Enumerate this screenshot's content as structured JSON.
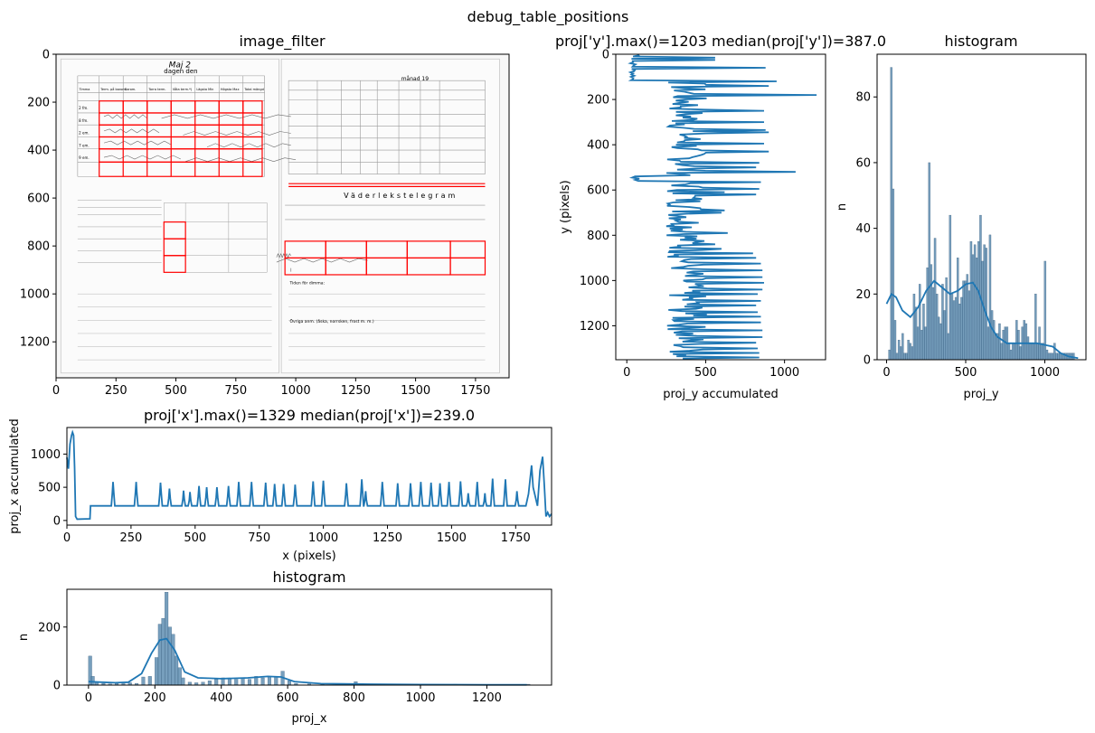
{
  "figure": {
    "suptitle": "debug_table_positions"
  },
  "colors": {
    "line": "#1f77b4",
    "hist_fill": "#4a7fa7",
    "hist_edge": "#35597a",
    "grid_box": "#ff0000"
  },
  "chart_data": [
    {
      "id": "image_filter",
      "type": "image",
      "title": "image_filter",
      "xlim": [
        0,
        1890
      ],
      "ylim": [
        1350,
        0
      ],
      "xticks": [
        0,
        250,
        500,
        750,
        1000,
        1250,
        1500,
        1750
      ],
      "yticks": [
        0,
        200,
        400,
        600,
        800,
        1000,
        1200
      ],
      "image_content": {
        "left_page": {
          "header": "dagen den",
          "date_handwritten": "Maj 2",
          "table_header": [
            "Timma",
            "Term. på barom.",
            "Barom.",
            "Torra term.",
            "Våta term.*)",
            "Lägsta Min",
            "Högsta Max",
            "Total mängd"
          ],
          "rows": [
            "2 fm.",
            "8 fm.",
            "2 em.",
            "7 em.",
            "9 em."
          ]
        },
        "right_page": {
          "header": "månad 19",
          "title": "Väderlekstelegram",
          "labels": [
            "Tiden för dimma:",
            "Övriga anm. (åska, norrsken, frost m. m.)"
          ]
        }
      },
      "boxes": [
        {
          "x0": 180,
          "x1": 280,
          "y0": 195,
          "y1": 245
        },
        {
          "x0": 280,
          "x1": 380,
          "y0": 195,
          "y1": 245
        },
        {
          "x0": 380,
          "x1": 480,
          "y0": 195,
          "y1": 245
        },
        {
          "x0": 480,
          "x1": 580,
          "y0": 195,
          "y1": 245
        },
        {
          "x0": 580,
          "x1": 680,
          "y0": 195,
          "y1": 245
        },
        {
          "x0": 680,
          "x1": 780,
          "y0": 195,
          "y1": 245
        },
        {
          "x0": 780,
          "x1": 860,
          "y0": 195,
          "y1": 245
        },
        {
          "x0": 180,
          "x1": 860,
          "y0": 245,
          "y1": 295
        },
        {
          "x0": 180,
          "x1": 860,
          "y0": 295,
          "y1": 345
        },
        {
          "x0": 180,
          "x1": 860,
          "y0": 345,
          "y1": 395
        },
        {
          "x0": 180,
          "x1": 860,
          "y0": 395,
          "y1": 450
        },
        {
          "x0": 180,
          "x1": 860,
          "y0": 450,
          "y1": 510
        },
        {
          "x0": 450,
          "x1": 540,
          "y0": 700,
          "y1": 770
        },
        {
          "x0": 450,
          "x1": 540,
          "y0": 770,
          "y1": 840
        },
        {
          "x0": 450,
          "x1": 540,
          "y0": 840,
          "y1": 910
        },
        {
          "x0": 955,
          "x1": 1125,
          "y0": 780,
          "y1": 850
        },
        {
          "x0": 1125,
          "x1": 1295,
          "y0": 780,
          "y1": 850
        },
        {
          "x0": 1295,
          "x1": 1465,
          "y0": 780,
          "y1": 850
        },
        {
          "x0": 1465,
          "x1": 1645,
          "y0": 780,
          "y1": 850
        },
        {
          "x0": 1645,
          "x1": 1790,
          "y0": 780,
          "y1": 850
        },
        {
          "x0": 955,
          "x1": 1125,
          "y0": 850,
          "y1": 920
        },
        {
          "x0": 1125,
          "x1": 1295,
          "y0": 850,
          "y1": 920
        },
        {
          "x0": 1295,
          "x1": 1465,
          "y0": 850,
          "y1": 920
        },
        {
          "x0": 1465,
          "x1": 1645,
          "y0": 850,
          "y1": 920
        },
        {
          "x0": 1645,
          "x1": 1790,
          "y0": 850,
          "y1": 920
        }
      ],
      "hlines": [
        {
          "x0": 970,
          "x1": 1790,
          "y": 540
        },
        {
          "x0": 970,
          "x1": 1790,
          "y": 552
        }
      ]
    },
    {
      "id": "proj_y",
      "type": "line",
      "title": "proj['y'].max()=1203 median(proj['y'])=387.0",
      "xlabel": "proj_y accumulated",
      "ylabel": "y (pixels)",
      "xlim": [
        -70,
        1260
      ],
      "ylim": [
        1350,
        0
      ],
      "xticks": [
        0,
        500,
        1000
      ],
      "yticks": [
        0,
        200,
        400,
        600,
        800,
        1000,
        1200
      ]
    },
    {
      "id": "hist_y",
      "type": "bar",
      "title": "histogram",
      "xlabel": "proj_y",
      "ylabel": "n",
      "xlim": [
        -60,
        1260
      ],
      "ylim": [
        0,
        93
      ],
      "xticks": [
        0,
        500,
        1000
      ],
      "yticks": [
        0,
        20,
        40,
        60,
        80
      ],
      "bin_start": 0,
      "bin_width": 12,
      "counts": [
        0,
        3,
        89,
        52,
        12,
        2,
        6,
        4,
        8,
        2,
        2,
        6,
        5,
        4,
        20,
        16,
        10,
        23,
        9,
        17,
        10,
        28,
        60,
        29,
        22,
        37,
        20,
        13,
        11,
        23,
        15,
        25,
        8,
        44,
        20,
        18,
        19,
        31,
        17,
        19,
        24,
        24,
        26,
        21,
        36,
        32,
        35,
        31,
        36,
        44,
        30,
        35,
        34,
        10,
        38,
        15,
        12,
        8,
        8,
        11,
        5,
        9,
        10,
        10,
        5,
        3,
        5,
        5,
        12,
        9,
        4,
        10,
        12,
        11,
        7,
        5,
        5,
        5,
        20,
        5,
        10,
        5,
        5,
        30,
        3,
        2,
        2,
        2,
        5,
        2,
        2,
        2,
        2,
        2,
        2,
        2,
        2,
        2,
        2,
        0
      ],
      "kde": [
        [
          0,
          17
        ],
        [
          30,
          20
        ],
        [
          60,
          19
        ],
        [
          100,
          15
        ],
        [
          150,
          13
        ],
        [
          200,
          16
        ],
        [
          250,
          21
        ],
        [
          300,
          24
        ],
        [
          350,
          22
        ],
        [
          400,
          20
        ],
        [
          450,
          21
        ],
        [
          500,
          23
        ],
        [
          545,
          23.5
        ],
        [
          580,
          21
        ],
        [
          620,
          15
        ],
        [
          660,
          10
        ],
        [
          700,
          7
        ],
        [
          760,
          5
        ],
        [
          850,
          5
        ],
        [
          950,
          5
        ],
        [
          1000,
          4.5
        ],
        [
          1050,
          4
        ],
        [
          1100,
          2
        ],
        [
          1150,
          1
        ],
        [
          1210,
          0.5
        ]
      ]
    },
    {
      "id": "proj_x",
      "type": "line",
      "title": "proj['x'].max()=1329 median(proj['x'])=239.0",
      "xlabel": "x (pixels)",
      "ylabel": "proj_x accumulated",
      "xlim": [
        0,
        1890
      ],
      "ylim": [
        -70,
        1400
      ],
      "xticks": [
        0,
        250,
        500,
        750,
        1000,
        1250,
        1500,
        1750
      ],
      "yticks": [
        0,
        500,
        1000
      ],
      "base": 220,
      "peaks": [
        [
          180,
          580
        ],
        [
          270,
          580
        ],
        [
          365,
          570
        ],
        [
          400,
          480
        ],
        [
          455,
          450
        ],
        [
          480,
          430
        ],
        [
          515,
          520
        ],
        [
          545,
          500
        ],
        [
          585,
          500
        ],
        [
          630,
          520
        ],
        [
          670,
          580
        ],
        [
          720,
          580
        ],
        [
          775,
          570
        ],
        [
          810,
          550
        ],
        [
          845,
          550
        ],
        [
          890,
          540
        ],
        [
          960,
          590
        ],
        [
          1000,
          600
        ],
        [
          1090,
          560
        ],
        [
          1150,
          620
        ],
        [
          1165,
          440
        ],
        [
          1230,
          580
        ],
        [
          1290,
          560
        ],
        [
          1340,
          560
        ],
        [
          1380,
          580
        ],
        [
          1420,
          570
        ],
        [
          1455,
          560
        ],
        [
          1490,
          580
        ],
        [
          1535,
          590
        ],
        [
          1565,
          410
        ],
        [
          1600,
          580
        ],
        [
          1630,
          410
        ],
        [
          1660,
          630
        ],
        [
          1710,
          620
        ],
        [
          1755,
          440
        ]
      ],
      "segments": [
        [
          0,
          950
        ],
        [
          6,
          780
        ],
        [
          12,
          1150
        ],
        [
          18,
          1280
        ],
        [
          22,
          1329
        ],
        [
          26,
          1280
        ],
        [
          30,
          800
        ],
        [
          34,
          60
        ],
        [
          40,
          20
        ],
        [
          90,
          25
        ],
        [
          92,
          220
        ],
        [
          1790,
          220
        ],
        [
          1800,
          400
        ],
        [
          1812,
          830
        ],
        [
          1818,
          500
        ],
        [
          1835,
          220
        ],
        [
          1845,
          750
        ],
        [
          1855,
          960
        ],
        [
          1862,
          500
        ],
        [
          1868,
          60
        ],
        [
          1875,
          120
        ],
        [
          1882,
          60
        ],
        [
          1890,
          100
        ]
      ]
    },
    {
      "id": "hist_x",
      "type": "bar",
      "title": "histogram",
      "xlabel": "proj_x",
      "ylabel": "n",
      "xlim": [
        -65,
        1395
      ],
      "ylim": [
        0,
        330
      ],
      "xticks": [
        0,
        200,
        400,
        600,
        800,
        1000,
        1200
      ],
      "yticks": [
        0,
        200
      ],
      "bars": [
        [
          0,
          100
        ],
        [
          8,
          30
        ],
        [
          20,
          10
        ],
        [
          40,
          6
        ],
        [
          60,
          4
        ],
        [
          80,
          6
        ],
        [
          100,
          5
        ],
        [
          120,
          8
        ],
        [
          140,
          6
        ],
        [
          160,
          28
        ],
        [
          180,
          30
        ],
        [
          200,
          95
        ],
        [
          210,
          210
        ],
        [
          220,
          230
        ],
        [
          230,
          320
        ],
        [
          240,
          200
        ],
        [
          250,
          175
        ],
        [
          260,
          100
        ],
        [
          270,
          60
        ],
        [
          280,
          25
        ],
        [
          300,
          10
        ],
        [
          320,
          8
        ],
        [
          340,
          10
        ],
        [
          360,
          15
        ],
        [
          380,
          20
        ],
        [
          400,
          25
        ],
        [
          420,
          22
        ],
        [
          440,
          20
        ],
        [
          460,
          25
        ],
        [
          480,
          20
        ],
        [
          500,
          30
        ],
        [
          520,
          25
        ],
        [
          540,
          30
        ],
        [
          560,
          28
        ],
        [
          580,
          48
        ],
        [
          600,
          15
        ],
        [
          620,
          6
        ],
        [
          660,
          4
        ],
        [
          700,
          3
        ],
        [
          800,
          12
        ],
        [
          900,
          3
        ],
        [
          1000,
          3
        ],
        [
          1100,
          3
        ],
        [
          1200,
          2
        ],
        [
          1320,
          3
        ]
      ],
      "bin_width": 10,
      "kde": [
        [
          0,
          12
        ],
        [
          40,
          10
        ],
        [
          80,
          8
        ],
        [
          120,
          10
        ],
        [
          160,
          40
        ],
        [
          190,
          110
        ],
        [
          215,
          155
        ],
        [
          235,
          160
        ],
        [
          260,
          120
        ],
        [
          290,
          45
        ],
        [
          330,
          25
        ],
        [
          400,
          22
        ],
        [
          480,
          25
        ],
        [
          540,
          30
        ],
        [
          580,
          28
        ],
        [
          620,
          12
        ],
        [
          700,
          5
        ],
        [
          850,
          3
        ],
        [
          1000,
          2
        ],
        [
          1200,
          1
        ],
        [
          1320,
          1
        ]
      ]
    }
  ]
}
